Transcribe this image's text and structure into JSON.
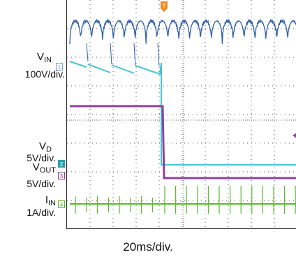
{
  "chart_data": {
    "type": "line",
    "subtype": "oscilloscope",
    "timebase": "20ms/div.",
    "grid": true,
    "divisions": {
      "x": 10,
      "y": 8
    },
    "trigger_marker": "T",
    "channels": [
      {
        "id": "1",
        "name_main": "V",
        "name_sub": "IN",
        "scale": "100V/div.",
        "color": "#2e5fa8",
        "marker_color": "#6ba6d6"
      },
      {
        "id": "2",
        "name_main": "V",
        "name_sub": "D",
        "scale": "5V/div.",
        "color": "#45c4d4",
        "marker_color": "#2aa1a8"
      },
      {
        "id": "3",
        "name_main": "V",
        "name_sub": "OUT",
        "scale": "5V/div.",
        "color": "#8e3fa0",
        "marker_color": "#8e3fa0"
      },
      {
        "id": "4",
        "name_main": "I",
        "name_sub": "IN",
        "scale": "1A/div.",
        "color": "#5cb82f",
        "marker_color": "#5cb82f"
      }
    ],
    "colors": {
      "trigger": "#f08a24",
      "grid": "#555555"
    }
  }
}
